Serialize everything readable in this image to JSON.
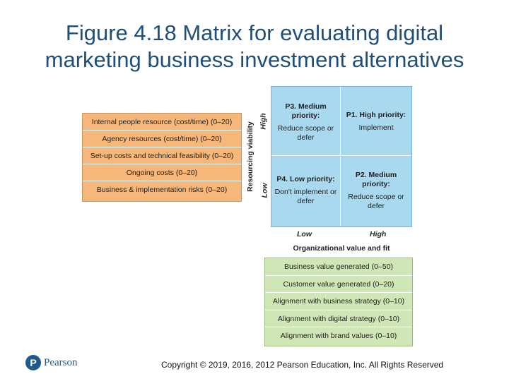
{
  "title": {
    "line1": "Figure 4.18 Matrix for evaluating digital",
    "line2": "marketing business investment alternatives"
  },
  "resourcing_criteria": [
    "Internal people resource (cost/time) (0–20)",
    "Agency resources (cost/time) (0–20)",
    "Set-up costs and technical feasibility (0–20)",
    "Ongoing costs (0–20)",
    "Business & implementation risks (0–20)"
  ],
  "y_axis": {
    "title": "Resourcing viability",
    "high": "High",
    "low": "Low"
  },
  "quadrants": {
    "p3": {
      "heading": "P3. Medium priority:",
      "desc": "Reduce scope or defer"
    },
    "p1": {
      "heading": "P1. High priority:",
      "desc": "Implement"
    },
    "p4": {
      "heading": "P4. Low priority:",
      "desc": "Don't implement or defer"
    },
    "p2": {
      "heading": "P2. Medium priority:",
      "desc": "Reduce scope or defer"
    }
  },
  "x_axis": {
    "title": "Organizational value and fit",
    "low": "Low",
    "high": "High"
  },
  "value_criteria": [
    "Business value generated (0–50)",
    "Customer value generated (0–20)",
    "Alignment with business strategy (0–10)",
    "Alignment with digital strategy (0–10)",
    "Alignment with brand values (0–10)"
  ],
  "footer": {
    "logo_text": "Pearson",
    "copyright": "Copyright © 2019, 2016, 2012 Pearson Education, Inc. All Rights Reserved"
  },
  "colors": {
    "title": "#1f4e79",
    "resourcing_box": "#f5b77a",
    "matrix": "#a8d9ee",
    "value_box": "#cfe6b6"
  }
}
